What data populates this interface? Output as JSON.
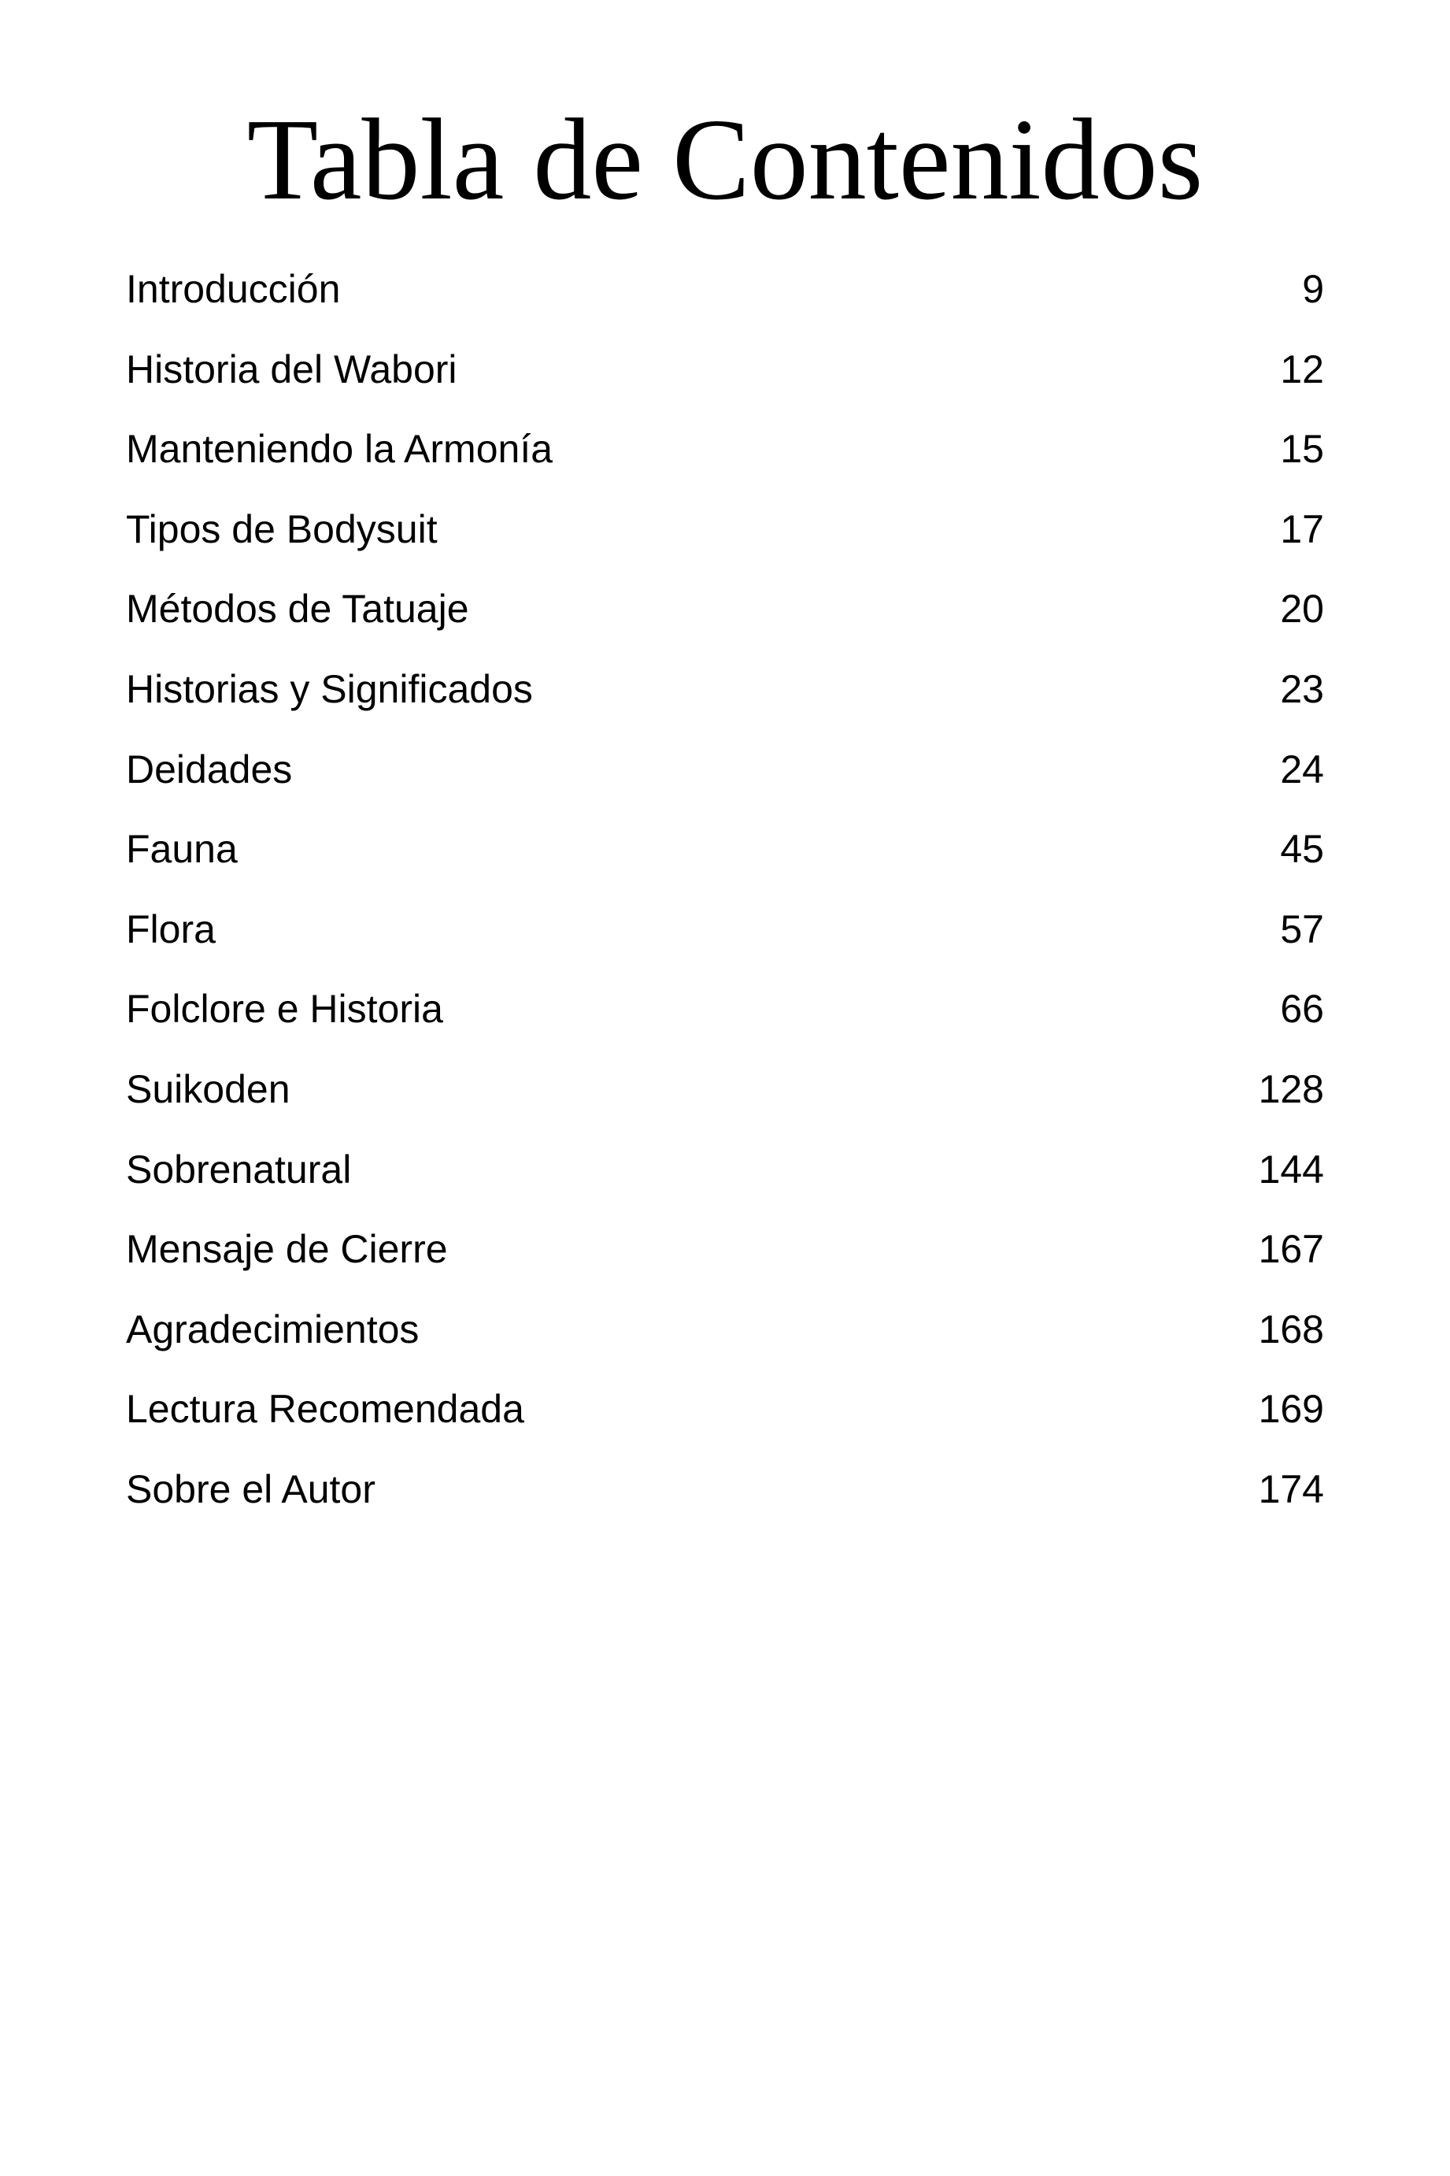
{
  "title": "Tabla de Contenidos",
  "entries": [
    {
      "label": "Introducción",
      "page": "9"
    },
    {
      "label": "Historia del Wabori",
      "page": "12"
    },
    {
      "label": "Manteniendo la Armonía",
      "page": "15"
    },
    {
      "label": "Tipos de Bodysuit",
      "page": "17"
    },
    {
      "label": "Métodos de Tatuaje",
      "page": "20"
    },
    {
      "label": "Historias y Significados",
      "page": "23"
    },
    {
      "label": "Deidades",
      "page": "24"
    },
    {
      "label": "Fauna",
      "page": "45"
    },
    {
      "label": "Flora",
      "page": "57"
    },
    {
      "label": "Folclore e Historia",
      "page": "66"
    },
    {
      "label": "Suikoden",
      "page": "128"
    },
    {
      "label": "Sobrenatural",
      "page": "144"
    },
    {
      "label": "Mensaje de Cierre",
      "page": "167"
    },
    {
      "label": "Agradecimientos",
      "page": "168"
    },
    {
      "label": "Lectura Recomendada",
      "page": "169"
    },
    {
      "label": "Sobre el Autor",
      "page": "174"
    }
  ]
}
